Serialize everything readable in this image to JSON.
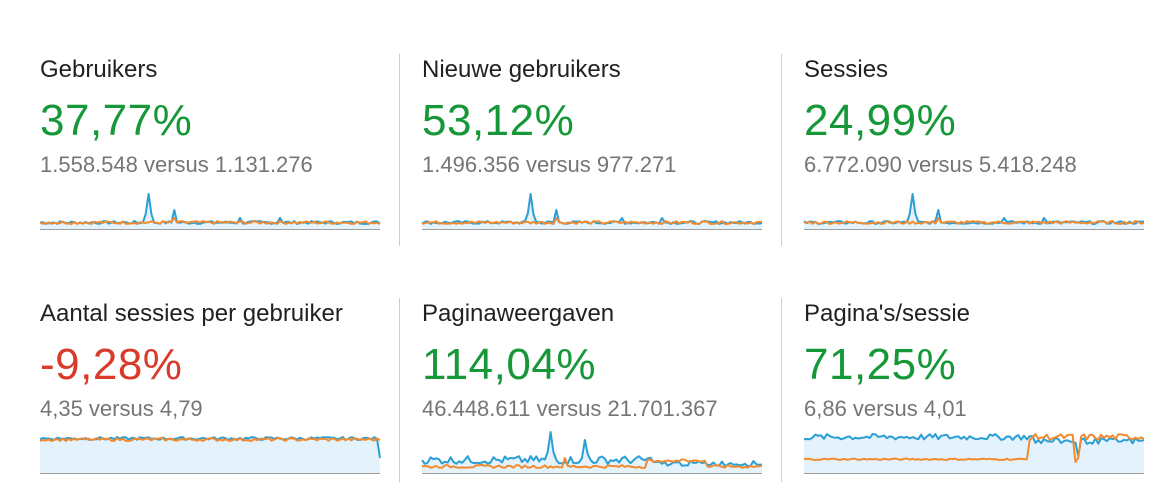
{
  "colors": {
    "positive": "#169838",
    "negative": "#d93b2b",
    "current_series": "#2a9fd6",
    "previous_series": "#f28b30",
    "fill": "#e3f2fb",
    "baseline": "#9e9e9e"
  },
  "metrics": [
    {
      "title": "Gebruikers",
      "change": "37,77%",
      "trend": "positive",
      "compare": "1.558.548 versus 1.131.276",
      "spark_type": "spike"
    },
    {
      "title": "Nieuwe gebruikers",
      "change": "53,12%",
      "trend": "positive",
      "compare": "1.496.356 versus 977.271",
      "spark_type": "spike"
    },
    {
      "title": "Sessies",
      "change": "24,99%",
      "trend": "positive",
      "compare": "6.772.090 versus 5.418.248",
      "spark_type": "spike"
    },
    {
      "title": "Aantal sessies per gebruiker",
      "change": "-9,28%",
      "trend": "negative",
      "compare": "4,35 versus 4,79",
      "spark_type": "flat-high"
    },
    {
      "title": "Paginaweergaven",
      "change": "114,04%",
      "trend": "positive",
      "compare": "46.448.611 versus 21.701.367",
      "spark_type": "spike-noisy"
    },
    {
      "title": "Pagina's/sessie",
      "change": "71,25%",
      "trend": "positive",
      "compare": "6,86 versus 4,01",
      "spark_type": "step"
    }
  ]
}
